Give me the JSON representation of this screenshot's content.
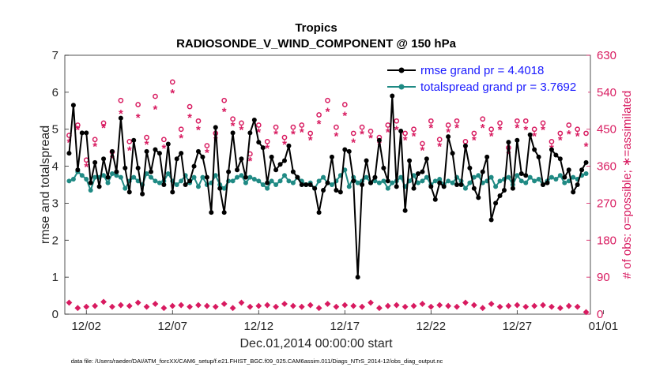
{
  "chart_data": {
    "type": "line",
    "title": "Tropics",
    "subtitle": "RADIOSONDE_V_WIND_COMPONENT @ 150 hPa",
    "xlabel": "Dec.01,2014 00:00:00 start",
    "ylabel_left": "rmse and totalspread",
    "ylabel_right": "# of obs: o=possible; ∗=assimilated",
    "ylim_left": [
      0,
      7
    ],
    "ylim_right": [
      0,
      630
    ],
    "xlim": [
      0.75,
      31.25
    ],
    "left_ticks": [
      "0",
      "1",
      "2",
      "3",
      "4",
      "5",
      "6",
      "7"
    ],
    "right_ticks": [
      "0",
      "90",
      "180",
      "270",
      "360",
      "450",
      "540",
      "630"
    ],
    "x_ticks": [
      {
        "value": 2,
        "label": "12/02"
      },
      {
        "value": 7,
        "label": "12/07"
      },
      {
        "value": 12,
        "label": "12/12"
      },
      {
        "value": 17,
        "label": "12/17"
      },
      {
        "value": 22,
        "label": "12/22"
      },
      {
        "value": 27,
        "label": "12/27"
      },
      {
        "value": 32,
        "label": "01/01"
      }
    ],
    "series": [
      {
        "name": "rmse",
        "legend": "rmse grand pr = 4.4018",
        "color": "#000000",
        "x": [
          1.0,
          1.25,
          1.5,
          1.75,
          2.0,
          2.25,
          2.5,
          2.75,
          3.0,
          3.25,
          3.5,
          3.75,
          4.0,
          4.25,
          4.5,
          4.75,
          5.0,
          5.25,
          5.5,
          5.75,
          6.0,
          6.25,
          6.5,
          6.75,
          7.0,
          7.25,
          7.5,
          7.75,
          8.0,
          8.25,
          8.5,
          8.75,
          9.0,
          9.25,
          9.5,
          9.75,
          10.0,
          10.25,
          10.5,
          10.75,
          11.0,
          11.25,
          11.5,
          11.75,
          12.0,
          12.25,
          12.5,
          12.75,
          13.0,
          13.25,
          13.5,
          13.75,
          14.0,
          14.25,
          14.5,
          14.75,
          15.0,
          15.25,
          15.5,
          15.75,
          16.0,
          16.25,
          16.5,
          16.75,
          17.0,
          17.25,
          17.5,
          17.75,
          18.0,
          18.25,
          18.5,
          18.75,
          19.0,
          19.25,
          19.5,
          19.75,
          20.0,
          20.25,
          20.5,
          20.75,
          21.0,
          21.25,
          21.5,
          21.75,
          22.0,
          22.25,
          22.5,
          22.75,
          23.0,
          23.25,
          23.5,
          23.75,
          24.0,
          24.25,
          24.5,
          24.75,
          25.0,
          25.25,
          25.5,
          25.75,
          26.0,
          26.25,
          26.5,
          26.75,
          27.0,
          27.25,
          27.5,
          27.75,
          28.0,
          28.25,
          28.5,
          28.75,
          29.0,
          29.25,
          29.5,
          29.75,
          30.0,
          30.25,
          30.5,
          30.75,
          31.0
        ],
        "values": [
          4.35,
          5.65,
          3.9,
          4.9,
          4.9,
          3.55,
          4.1,
          3.45,
          4.2,
          3.7,
          4.4,
          3.85,
          5.3,
          3.95,
          3.3,
          4.7,
          3.95,
          3.25,
          4.4,
          3.85,
          4.45,
          4.35,
          3.5,
          4.6,
          3.3,
          4.2,
          4.35,
          3.5,
          3.6,
          4.0,
          4.4,
          4.25,
          3.7,
          2.75,
          5.05,
          3.4,
          2.75,
          3.85,
          4.9,
          3.9,
          4.2,
          3.7,
          4.9,
          5.25,
          4.65,
          4.5,
          3.55,
          4.25,
          3.9,
          4.05,
          4.15,
          4.55,
          3.85,
          3.7,
          3.5,
          3.5,
          3.5,
          3.4,
          2.75,
          3.35,
          3.55,
          4.25,
          3.35,
          3.3,
          4.45,
          4.4,
          3.6,
          1.0,
          3.5,
          4.15,
          3.55,
          3.7,
          4.7,
          3.95,
          3.6,
          5.9,
          3.45,
          4.95,
          2.8,
          4.15,
          3.4,
          3.8,
          3.85,
          4.2,
          3.45,
          3.1,
          3.55,
          3.45,
          4.8,
          4.35,
          3.5,
          3.5,
          4.55,
          3.95,
          3.4,
          3.15,
          3.85,
          4.25,
          2.55,
          3.0,
          3.2,
          3.35,
          4.65,
          3.4,
          4.7,
          3.8,
          3.75,
          4.85,
          4.45,
          4.25,
          3.5,
          3.55,
          4.45,
          4.3,
          4.2,
          3.7,
          3.9,
          3.3,
          3.5,
          3.9,
          4.1
        ]
      },
      {
        "name": "totalspread",
        "legend": "totalspread grand pr = 3.7692",
        "color": "#1f8a84",
        "x": [
          1.0,
          1.25,
          1.5,
          1.75,
          2.0,
          2.25,
          2.5,
          2.75,
          3.0,
          3.25,
          3.5,
          3.75,
          4.0,
          4.25,
          4.5,
          4.75,
          5.0,
          5.25,
          5.5,
          5.75,
          6.0,
          6.25,
          6.5,
          6.75,
          7.0,
          7.25,
          7.5,
          7.75,
          8.0,
          8.25,
          8.5,
          8.75,
          9.0,
          9.25,
          9.5,
          9.75,
          10.0,
          10.25,
          10.5,
          10.75,
          11.0,
          11.25,
          11.5,
          11.75,
          12.0,
          12.25,
          12.5,
          12.75,
          13.0,
          13.25,
          13.5,
          13.75,
          14.0,
          14.25,
          14.5,
          14.75,
          15.0,
          15.25,
          15.5,
          15.75,
          16.0,
          16.25,
          16.5,
          16.75,
          17.0,
          17.25,
          17.5,
          17.75,
          18.0,
          18.25,
          18.5,
          18.75,
          19.0,
          19.25,
          19.5,
          19.75,
          20.0,
          20.25,
          20.5,
          20.75,
          21.0,
          21.25,
          21.5,
          21.75,
          22.0,
          22.25,
          22.5,
          22.75,
          23.0,
          23.25,
          23.5,
          23.75,
          24.0,
          24.25,
          24.5,
          24.75,
          25.0,
          25.25,
          25.5,
          25.75,
          26.0,
          26.25,
          26.5,
          26.75,
          27.0,
          27.25,
          27.5,
          27.75,
          28.0,
          28.25,
          28.5,
          28.75,
          29.0,
          29.25,
          29.5,
          29.75,
          30.0,
          30.25,
          30.5,
          30.75,
          31.0
        ],
        "values": [
          3.6,
          3.65,
          3.85,
          3.75,
          3.65,
          3.35,
          3.7,
          3.7,
          3.75,
          3.55,
          3.8,
          3.75,
          3.7,
          3.4,
          3.6,
          3.7,
          3.6,
          3.5,
          3.8,
          3.7,
          3.6,
          3.55,
          3.6,
          3.8,
          3.6,
          3.5,
          3.6,
          3.75,
          3.55,
          3.7,
          3.45,
          3.7,
          3.5,
          3.55,
          3.75,
          3.5,
          3.4,
          3.6,
          3.6,
          3.7,
          3.75,
          3.55,
          3.7,
          3.65,
          3.6,
          3.5,
          3.4,
          3.6,
          3.5,
          3.6,
          3.75,
          3.6,
          3.55,
          3.7,
          3.6,
          3.5,
          3.55,
          3.4,
          3.6,
          3.7,
          3.55,
          3.5,
          3.6,
          3.75,
          3.9,
          3.45,
          3.7,
          3.55,
          3.6,
          3.7,
          3.55,
          3.6,
          3.55,
          3.6,
          3.4,
          3.55,
          3.6,
          3.7,
          3.45,
          3.6,
          3.75,
          3.55,
          3.6,
          3.7,
          3.5,
          3.6,
          3.65,
          3.5,
          3.6,
          3.55,
          3.7,
          3.6,
          3.4,
          3.55,
          3.7,
          3.75,
          3.55,
          3.6,
          3.7,
          3.45,
          3.6,
          3.65,
          3.7,
          3.5,
          3.75,
          3.6,
          3.55,
          3.7,
          3.6,
          3.65,
          3.5,
          3.6,
          3.7,
          3.65,
          3.75,
          3.55,
          3.6,
          3.7,
          3.65,
          3.75,
          3.8
        ]
      }
    ],
    "obs_possible": {
      "x": [
        1.0,
        1.5,
        2.0,
        2.5,
        3.0,
        3.5,
        4.0,
        4.5,
        5.0,
        5.5,
        6.0,
        6.5,
        7.0,
        7.5,
        8.0,
        8.5,
        9.0,
        9.5,
        10.0,
        10.5,
        11.0,
        11.5,
        12.0,
        12.5,
        13.0,
        13.5,
        14.0,
        14.5,
        15.0,
        15.5,
        16.0,
        16.5,
        17.0,
        17.5,
        18.0,
        18.5,
        19.0,
        19.5,
        20.0,
        20.5,
        21.0,
        21.5,
        22.0,
        22.5,
        23.0,
        23.5,
        24.0,
        24.5,
        25.0,
        25.5,
        26.0,
        26.5,
        27.0,
        27.5,
        28.0,
        28.5,
        29.0,
        29.5,
        30.0,
        30.5,
        31.0
      ],
      "values": [
        435,
        460,
        375,
        425,
        465,
        395,
        520,
        420,
        510,
        430,
        530,
        425,
        565,
        450,
        505,
        470,
        410,
        440,
        520,
        475,
        465,
        390,
        460,
        420,
        455,
        430,
        455,
        460,
        440,
        485,
        520,
        455,
        510,
        440,
        455,
        445,
        430,
        460,
        470,
        440,
        450,
        415,
        470,
        425,
        460,
        470,
        420,
        440,
        475,
        450,
        465,
        405,
        470,
        470,
        450,
        465,
        420,
        440,
        460,
        450,
        440
      ]
    },
    "obs_assimilated": {
      "x": [
        1.0,
        1.5,
        2.0,
        2.5,
        3.0,
        3.5,
        4.0,
        4.5,
        5.0,
        5.5,
        6.0,
        6.5,
        7.0,
        7.5,
        8.0,
        8.5,
        9.0,
        9.5,
        10.0,
        10.5,
        11.0,
        11.5,
        12.0,
        12.5,
        13.0,
        13.5,
        14.0,
        14.5,
        15.0,
        15.5,
        16.0,
        16.5,
        17.0,
        17.5,
        18.0,
        18.5,
        19.0,
        19.5,
        20.0,
        20.5,
        21.0,
        21.5,
        22.0,
        22.5,
        23.0,
        23.5,
        24.0,
        24.5,
        25.0,
        25.5,
        26.0,
        26.5,
        27.0,
        27.5,
        28.0,
        28.5,
        29.0,
        29.5,
        30.0,
        30.5,
        31.0
      ],
      "values": [
        420,
        450,
        360,
        410,
        455,
        380,
        490,
        400,
        480,
        415,
        500,
        405,
        540,
        430,
        480,
        450,
        395,
        425,
        495,
        460,
        450,
        375,
        445,
        405,
        440,
        415,
        440,
        445,
        425,
        465,
        495,
        435,
        485,
        420,
        440,
        430,
        415,
        445,
        450,
        425,
        435,
        400,
        455,
        410,
        445,
        455,
        405,
        425,
        455,
        435,
        450,
        390,
        455,
        450,
        435,
        450,
        405,
        425,
        440,
        435,
        410
      ]
    },
    "obs_bottom": {
      "x": [
        1.0,
        1.5,
        2.0,
        2.5,
        3.0,
        3.5,
        4.0,
        4.5,
        5.0,
        5.5,
        6.0,
        6.5,
        7.0,
        7.5,
        8.0,
        8.5,
        9.0,
        9.5,
        10.0,
        10.5,
        11.0,
        11.5,
        12.0,
        12.5,
        13.0,
        13.5,
        14.0,
        14.5,
        15.0,
        15.5,
        16.0,
        16.5,
        17.0,
        17.5,
        18.0,
        18.5,
        19.0,
        19.5,
        20.0,
        20.5,
        21.0,
        21.5,
        22.0,
        22.5,
        23.0,
        23.5,
        24.0,
        24.5,
        25.0,
        25.5,
        26.0,
        26.5,
        27.0,
        27.5,
        28.0,
        28.5,
        29.0,
        29.5,
        30.0,
        30.5,
        31.0
      ],
      "values": [
        28,
        15,
        18,
        20,
        30,
        18,
        22,
        20,
        28,
        18,
        25,
        15,
        20,
        22,
        18,
        22,
        20,
        18,
        25,
        15,
        28,
        18,
        20,
        22,
        18,
        25,
        20,
        18,
        22,
        15,
        25,
        18,
        22,
        20,
        18,
        28,
        15,
        20,
        22,
        18,
        20,
        25,
        18,
        22,
        20,
        18,
        28,
        22,
        15,
        25,
        18,
        20,
        22,
        18,
        20,
        22,
        18,
        15,
        20,
        18,
        5
      ]
    }
  },
  "legend": {
    "rmse": "rmse grand pr = 4.4018",
    "totalspread": "totalspread grand pr = 3.7692"
  },
  "footer": "data file: /Users/raeder/DAI/ATM_forcXX/CAM6_setup/f.e21.FHIST_BGC.f09_025.CAM6assim.011/Diags_NTrS_2014-12/obs_diag_output.nc",
  "colors": {
    "rmse": "#000000",
    "spread": "#1f8a84",
    "obs": "#d81b60",
    "legend_text": "#1a1aff",
    "axis": "#262626"
  }
}
